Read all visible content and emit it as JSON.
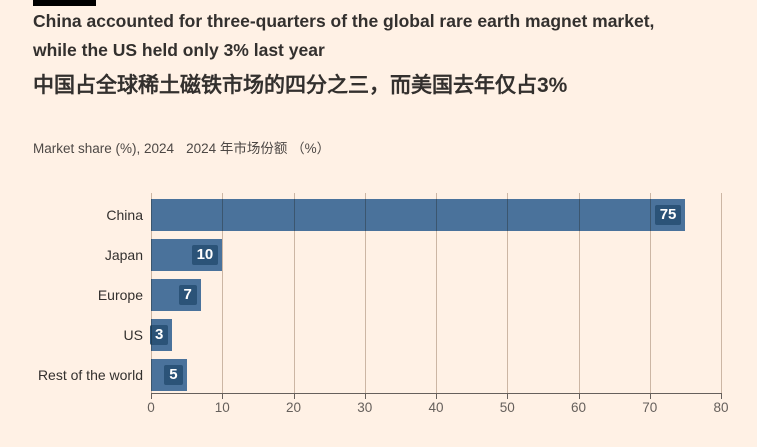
{
  "header": {
    "title_line1": "China accounted for three-quarters of the global rare earth magnet market,",
    "title_line2": "while the US held only 3% last year",
    "title_zh": "中国占全球稀土磁铁市场的四分之三，而美国去年仅占3%",
    "subtitle_en": "Market share (%), 2024",
    "subtitle_zh": "2024 年市场份额 （%）"
  },
  "chart_data": {
    "type": "bar",
    "orientation": "horizontal",
    "title": "Market share (%), 2024",
    "categories": [
      "China",
      "Japan",
      "Europe",
      "US",
      "Rest of the world"
    ],
    "values": [
      75,
      10,
      7,
      3,
      5
    ],
    "xlim": [
      0,
      80
    ],
    "xticks": [
      0,
      10,
      20,
      30,
      40,
      50,
      60,
      70,
      80
    ],
    "grid": true,
    "value_label_position": "inside-end",
    "legend": "none",
    "colors": {
      "background": "#FFF1E5",
      "bar": "#4A729B",
      "value_chip": "#2B5378",
      "value_text": "#FFFFFF",
      "gridline": "#CCC1B7",
      "axis": "#66605C",
      "tick_text": "#66605C",
      "title_text": "#33302E"
    }
  }
}
